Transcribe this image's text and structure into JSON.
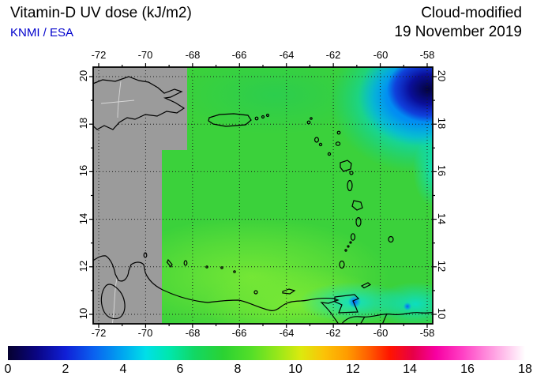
{
  "header": {
    "title": "Vitamin-D UV dose (kJ/m2)",
    "credit": "KNMI / ESA",
    "mode": "Cloud-modified",
    "date": "19 November 2019"
  },
  "map": {
    "lon_ticks": [
      "-72",
      "-70",
      "-68",
      "-66",
      "-64",
      "-62",
      "-60",
      "-58"
    ],
    "lat_ticks": [
      "20",
      "18",
      "16",
      "14",
      "12",
      "10"
    ],
    "colors": {
      "no_data_gray": "#9b9b9b",
      "dominant_green": "#3bd13b",
      "cloud_core_navy": "#04033f",
      "cloud_fringe_cyan": "#00d6da",
      "coastline_black": "#000000",
      "gridline": "#1a1a1a"
    }
  },
  "colorbar": {
    "min": 0,
    "max": 18,
    "ticks": [
      "0",
      "2",
      "4",
      "6",
      "8",
      "10",
      "12",
      "14",
      "16",
      "18"
    ],
    "stops": [
      {
        "value": 0,
        "color": "#06012f"
      },
      {
        "value": 1,
        "color": "#0a0583"
      },
      {
        "value": 2,
        "color": "#101fd6"
      },
      {
        "value": 3,
        "color": "#0a62f0"
      },
      {
        "value": 4,
        "color": "#00a7f0"
      },
      {
        "value": 4.8,
        "color": "#00dfe8"
      },
      {
        "value": 5.6,
        "color": "#00e7ae"
      },
      {
        "value": 6.5,
        "color": "#12d763"
      },
      {
        "value": 7.5,
        "color": "#2bd232"
      },
      {
        "value": 8.5,
        "color": "#55df28"
      },
      {
        "value": 9.5,
        "color": "#a0e818"
      },
      {
        "value": 10.2,
        "color": "#dce90e"
      },
      {
        "value": 11,
        "color": "#fbc307"
      },
      {
        "value": 11.8,
        "color": "#ff9c00"
      },
      {
        "value": 12.6,
        "color": "#ff5a00"
      },
      {
        "value": 13.3,
        "color": "#ff1400"
      },
      {
        "value": 14.1,
        "color": "#e70048"
      },
      {
        "value": 14.9,
        "color": "#f700a2"
      },
      {
        "value": 15.8,
        "color": "#ff3ec4"
      },
      {
        "value": 16.6,
        "color": "#ff86da"
      },
      {
        "value": 17.3,
        "color": "#ffc2ec"
      },
      {
        "value": 18,
        "color": "#ffffff"
      }
    ]
  },
  "chart_data": {
    "type": "heatmap",
    "title": "Vitamin-D UV dose (kJ/m2)",
    "subtitle": "Cloud-modified, 19 November 2019",
    "source": "KNMI / ESA",
    "x_ticks": [
      -72,
      -70,
      -68,
      -66,
      -64,
      -62,
      -60,
      -58
    ],
    "y_ticks": [
      10,
      12,
      14,
      16,
      18,
      20
    ],
    "x_range": [
      -72.25,
      -57.75
    ],
    "y_range": [
      9.6,
      20.4
    ],
    "scale": {
      "min": 0,
      "max": 18,
      "tick_step": 2,
      "unit": "kJ/m2"
    },
    "regions": [
      {
        "description": "left strip west of about -69 to -68 longitude",
        "value": "no data (gray)"
      },
      {
        "description": "most of the Caribbean map area",
        "value_kJ_m2": 8
      },
      {
        "description": "north-east corner cloudy minimum near -59E, 18.5N",
        "value_kJ_m2": 2
      },
      {
        "description": "cyan fringe around the north-east cloud area",
        "value_kJ_m2": 5
      },
      {
        "description": "patches near Trinidad and the south-east corner",
        "value_kJ_m2": 6
      },
      {
        "description": "bright patch along south-central Venezuelan coast",
        "value_kJ_m2": 9
      }
    ]
  }
}
